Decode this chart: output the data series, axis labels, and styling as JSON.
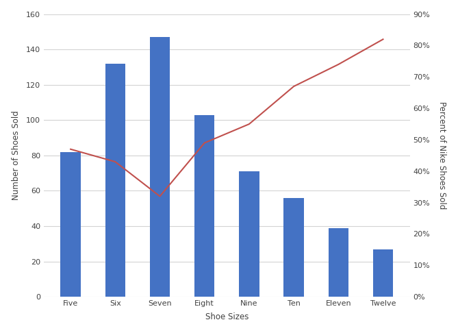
{
  "categories": [
    "Five",
    "Six",
    "Seven",
    "Eight",
    "Nine",
    "Ten",
    "Eleven",
    "Twelve"
  ],
  "bar_values": [
    82,
    132,
    147,
    103,
    71,
    56,
    39,
    27
  ],
  "line_values": [
    0.47,
    0.43,
    0.32,
    0.49,
    0.55,
    0.67,
    0.74,
    0.82
  ],
  "bar_color": "#4472C4",
  "line_color": "#C0504D",
  "xlabel": "Shoe Sizes",
  "ylabel_left": "Number of Shoes Sold",
  "ylabel_right": "Percent of Nike Shoes Sold",
  "ylim_left": [
    0,
    160
  ],
  "ylim_right": [
    0,
    0.9
  ],
  "yticks_left": [
    0,
    20,
    40,
    60,
    80,
    100,
    120,
    140,
    160
  ],
  "yticks_right": [
    0.0,
    0.1,
    0.2,
    0.3,
    0.4,
    0.5,
    0.6,
    0.7,
    0.8,
    0.9
  ],
  "background_color": "#FFFFFF",
  "grid_color": "#D3D3D3",
  "tick_label_fontsize": 8,
  "axis_label_fontsize": 8.5,
  "bar_width": 0.45
}
